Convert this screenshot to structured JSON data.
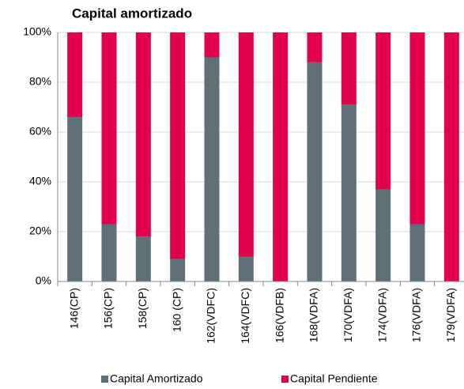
{
  "chart_data": {
    "type": "stacked_bar",
    "title": "Capital amortizado",
    "categories": [
      "146(CP)",
      "156(CP)",
      "158(CP)",
      "160 (CP)",
      "162(VDFC)",
      "164(VDFC)",
      "166(VDFB)",
      "168(VDFA)",
      "170(VDFA)",
      "174(VDFA)",
      "176(VDFA)",
      "179(VDFA)"
    ],
    "series": [
      {
        "name": "Capital Amortizado",
        "color": "#5f6f78",
        "values": [
          66,
          23,
          18,
          9,
          90,
          10,
          0,
          88,
          71,
          37,
          23,
          0
        ]
      },
      {
        "name": "Capital Pendiente",
        "color": "#e0004d",
        "values": [
          34,
          77,
          82,
          91,
          10,
          90,
          100,
          12,
          29,
          63,
          77,
          100
        ]
      }
    ],
    "ylim": [
      0,
      100
    ],
    "yticks": [
      {
        "value": 0,
        "label": "0%"
      },
      {
        "value": 20,
        "label": "20%"
      },
      {
        "value": 40,
        "label": "40%"
      },
      {
        "value": 60,
        "label": "60%"
      },
      {
        "value": 80,
        "label": "80%"
      },
      {
        "value": 100,
        "label": "100%"
      }
    ],
    "grid": true,
    "legend": "bottom"
  }
}
